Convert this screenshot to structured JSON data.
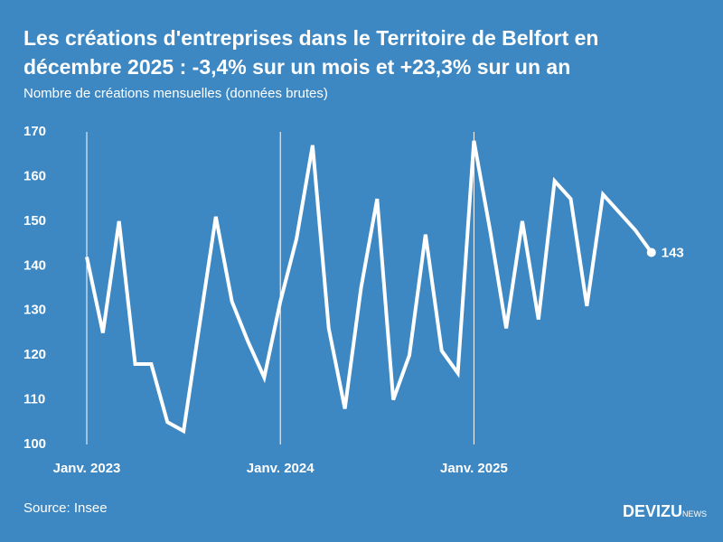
{
  "chart_data": {
    "type": "line",
    "title": "Les créations d'entreprises dans le Territoire de Belfort en décembre 2025 : -3,4% sur un mois et +23,3% sur un an",
    "subtitle": "Nombre de créations mensuelles (données brutes)",
    "source": "Source: Insee",
    "categories": [
      "Janv. 2023",
      null,
      null,
      null,
      null,
      null,
      null,
      null,
      null,
      null,
      null,
      null,
      "Janv. 2024",
      null,
      null,
      null,
      null,
      null,
      null,
      null,
      null,
      null,
      null,
      null,
      "Janv. 2025",
      null,
      null,
      null,
      null,
      null,
      null,
      null,
      null,
      null,
      null,
      null
    ],
    "values": [
      142,
      125,
      150,
      118,
      118,
      105,
      103,
      127,
      151,
      132,
      123,
      115,
      132,
      146,
      167,
      126,
      108,
      135,
      155,
      110,
      120,
      147,
      121,
      116,
      168,
      148,
      126,
      150,
      128,
      159,
      155,
      131,
      156,
      152,
      148,
      143
    ],
    "color": "#ffffff",
    "ylim": [
      100,
      170
    ],
    "yticks": [
      100,
      110,
      120,
      130,
      140,
      150,
      160,
      170
    ]
  },
  "brand": "DEVIZU",
  "brand_suffix": "NEWS"
}
